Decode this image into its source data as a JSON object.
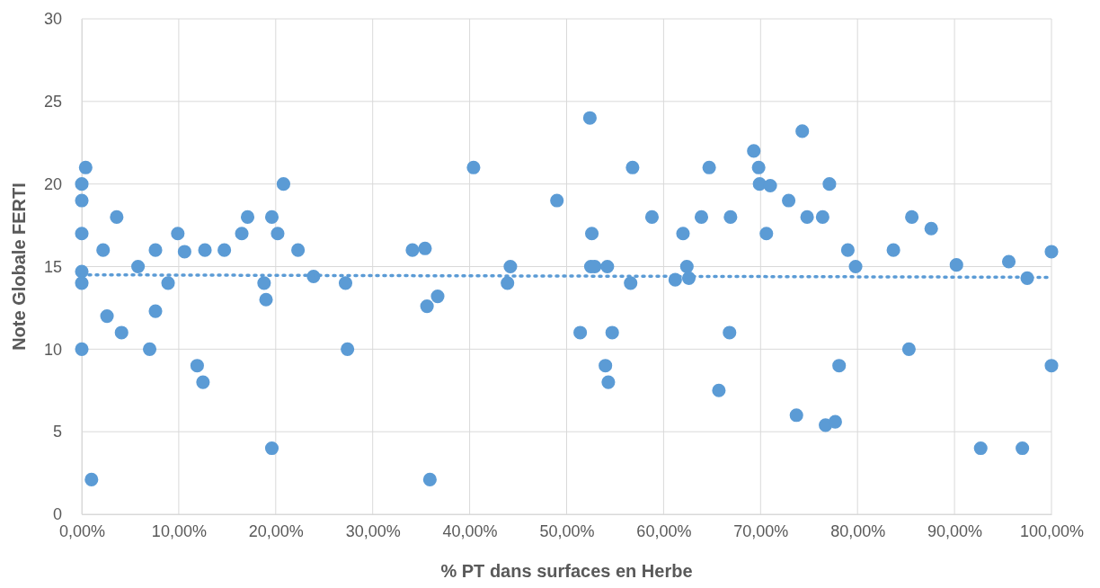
{
  "chart_data": {
    "type": "scatter",
    "xlabel": "% PT dans surfaces en Herbe",
    "ylabel": "Note Globale FERTI",
    "xlim": [
      0,
      100
    ],
    "ylim": [
      0,
      30
    ],
    "xticks": [
      {
        "value": 0,
        "label": "0,00%"
      },
      {
        "value": 10,
        "label": "10,00%"
      },
      {
        "value": 20,
        "label": "20,00%"
      },
      {
        "value": 30,
        "label": "30,00%"
      },
      {
        "value": 40,
        "label": "40,00%"
      },
      {
        "value": 50,
        "label": "50,00%"
      },
      {
        "value": 60,
        "label": "60,00%"
      },
      {
        "value": 70,
        "label": "70,00%"
      },
      {
        "value": 80,
        "label": "80,00%"
      },
      {
        "value": 90,
        "label": "90,00%"
      },
      {
        "value": 100,
        "label": "100,00%"
      }
    ],
    "yticks": [
      0,
      5,
      10,
      15,
      20,
      25,
      30
    ],
    "grid": true,
    "marker": "circle",
    "series": [
      {
        "color": "#5b9bd5",
        "x": [
          0,
          0,
          0,
          0,
          0,
          0,
          0.4,
          1.0,
          2.2,
          2.6,
          3.6,
          4.1,
          5.8,
          7.0,
          7.6,
          7.6,
          8.9,
          9.9,
          10.6,
          11.9,
          12.5,
          12.7,
          14.7,
          16.5,
          17.1,
          18.8,
          19.0,
          19.6,
          19.6,
          20.2,
          20.8,
          22.3,
          23.9,
          27.2,
          27.4,
          34.1,
          35.4,
          35.6,
          35.9,
          36.7,
          40.4,
          43.9,
          44.2,
          49.0,
          51.4,
          52.4,
          52.6,
          52.5,
          52.9,
          54.0,
          54.2,
          54.3,
          54.7,
          56.6,
          56.8,
          58.8,
          61.2,
          62.0,
          62.4,
          62.6,
          63.9,
          64.7,
          65.7,
          66.8,
          66.9,
          69.3,
          69.8,
          69.9,
          70.6,
          71.0,
          72.9,
          73.7,
          74.3,
          74.8,
          76.4,
          76.7,
          77.1,
          77.7,
          78.1,
          79.0,
          79.8,
          83.7,
          85.3,
          85.6,
          87.6,
          90.2,
          92.7,
          95.6,
          97.0,
          97.5,
          100,
          100
        ],
        "values": [
          20,
          19,
          17,
          14.7,
          14,
          10,
          21,
          2.1,
          16,
          12,
          18,
          11,
          15,
          10,
          16,
          12.3,
          14,
          17,
          15.9,
          9,
          8,
          16,
          16,
          17,
          18,
          14,
          13,
          4,
          18,
          17,
          20,
          16,
          14.4,
          14,
          10,
          16,
          16.1,
          12.6,
          2.1,
          13.2,
          21,
          14,
          15,
          19,
          11,
          24,
          17,
          15,
          15,
          9,
          15,
          8,
          11,
          14,
          21,
          18,
          14.2,
          17,
          15,
          14.3,
          18,
          21,
          7.5,
          11,
          18,
          22,
          21,
          20,
          17,
          19.9,
          19,
          6,
          23.2,
          18,
          18,
          5.4,
          20,
          5.6,
          9,
          16,
          15,
          16,
          10,
          18,
          17.3,
          15.1,
          4,
          15.3,
          4,
          14.3,
          15.9,
          9
        ]
      },
      {
        "type": "line",
        "color": "#5b9bd5",
        "line_style": "dotted",
        "marker": "none",
        "x": [
          0,
          100
        ],
        "values": [
          14.5,
          14.35
        ]
      }
    ]
  }
}
